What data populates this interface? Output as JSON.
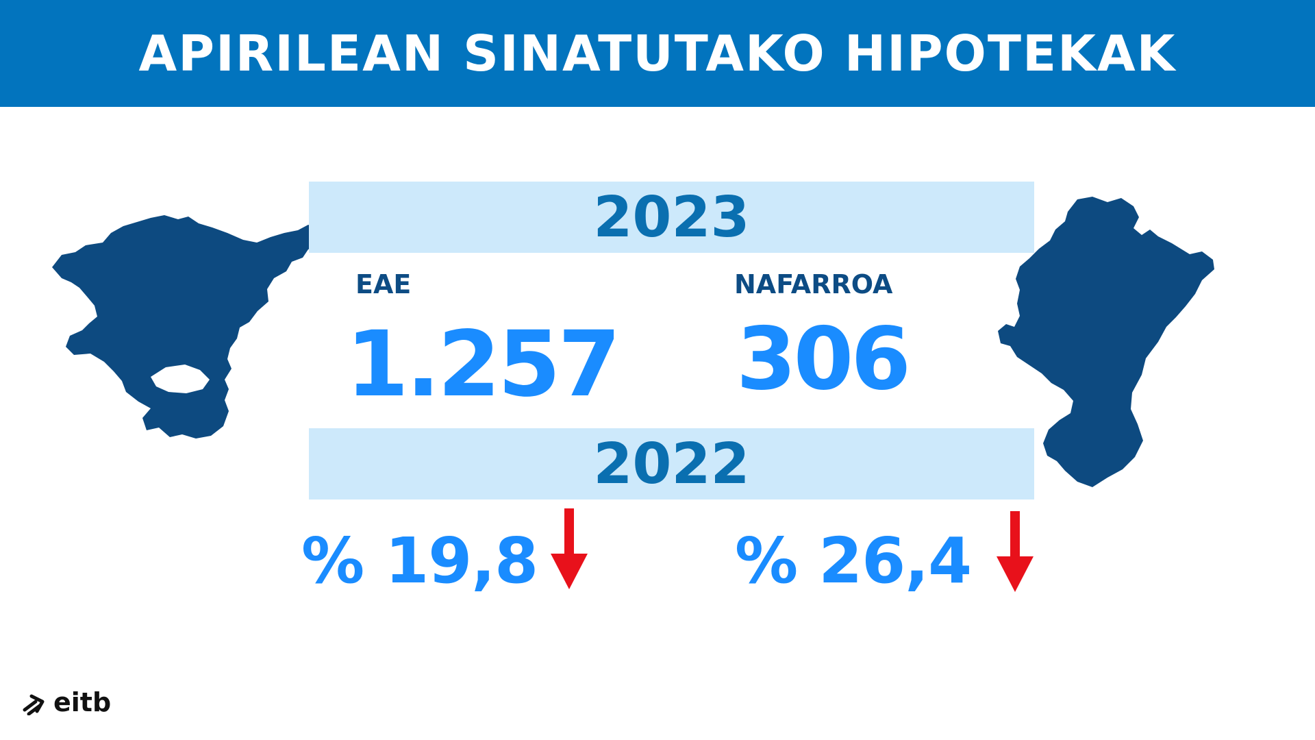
{
  "header": {
    "title": "APIRILEAN SINATUTAKO HIPOTEKAK"
  },
  "years": {
    "current": "2023",
    "previous": "2022"
  },
  "regions": {
    "eae": {
      "label": "EAE",
      "value": "1.257",
      "change": "% 19,8"
    },
    "nafarroa": {
      "label": "NAFARROA",
      "value": "306",
      "change": "% 26,4"
    }
  },
  "icons": {
    "eae_map": "basque-country-map-icon",
    "nafarroa_map": "navarre-map-icon",
    "down_arrow": "down-arrow-icon",
    "logo": "eitb-logo"
  },
  "colors": {
    "header_bg": "#0274be",
    "band_bg": "#cde9fb",
    "year_text": "#0a6fb0",
    "label_text": "#0d4c84",
    "value_text": "#1a8cff",
    "map_fill": "#0d4a80",
    "arrow": "#e8111b"
  },
  "logo": {
    "text": "eitb"
  }
}
